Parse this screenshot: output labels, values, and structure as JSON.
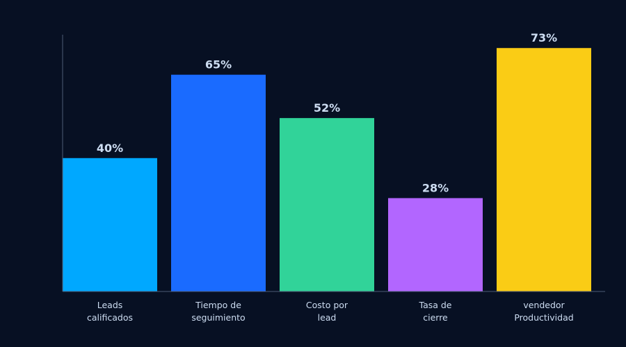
{
  "chart_data": {
    "type": "bar",
    "categories": [
      [
        "Leads",
        "calificados"
      ],
      [
        "Tiempo de",
        "seguimiento"
      ],
      [
        "Costo por",
        "lead"
      ],
      [
        "Tasa de",
        "cierre"
      ],
      [
        "vendedor",
        "Productividad"
      ]
    ],
    "values": [
      40,
      65,
      52,
      28,
      73
    ],
    "value_labels": [
      "40%",
      "65%",
      "52%",
      "28%",
      "73%"
    ],
    "bar_colors": [
      "#00A8FF",
      "#1A6BFF",
      "#31D399",
      "#B266FF",
      "#FACC15"
    ],
    "ylim": [
      0,
      77
    ],
    "grid": false,
    "legend": "none",
    "text_color": "#CDDDF2",
    "axis_color": "#4D5B74",
    "background": "#071023"
  }
}
